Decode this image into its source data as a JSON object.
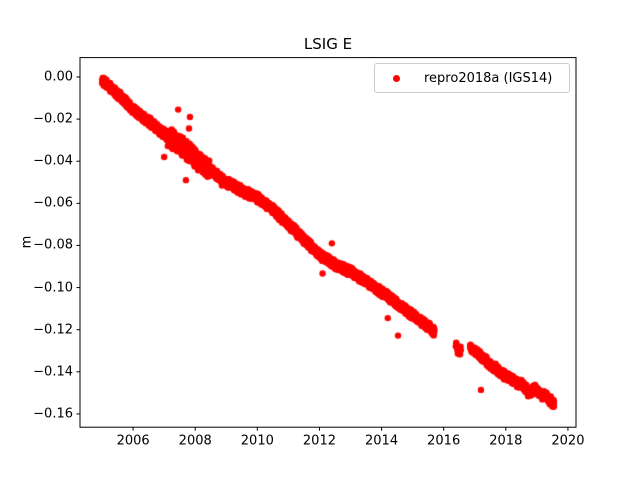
{
  "chart_data": {
    "type": "scatter",
    "title": "LSIG E",
    "xlabel": "",
    "ylabel": "m",
    "xlim": [
      2004.29,
      2020.26
    ],
    "ylim": [
      -0.1663,
      0.0092
    ],
    "grid": false,
    "xticks": [
      2006,
      2008,
      2010,
      2012,
      2014,
      2016,
      2018,
      2020
    ],
    "xtick_labels": [
      "2006",
      "2008",
      "2010",
      "2012",
      "2014",
      "2016",
      "2018",
      "2020"
    ],
    "yticks": [
      0.0,
      -0.02,
      -0.04,
      -0.06,
      -0.08,
      -0.1,
      -0.12,
      -0.14,
      -0.16
    ],
    "ytick_labels": [
      "0.00",
      "−0.02",
      "−0.04",
      "−0.06",
      "−0.08",
      "−0.10",
      "−0.12",
      "−0.14",
      "−0.16"
    ],
    "legend": {
      "position": "upper right",
      "entries": [
        {
          "label": "repro2018a (IGS14)",
          "color": "#ff0000",
          "marker": "dot"
        }
      ]
    },
    "colors": {
      "marker": "#ff0000",
      "axis": "#000000",
      "text": "#000000",
      "legend_border": "#cccccc",
      "background": "#ffffff"
    },
    "series": [
      {
        "name": "repro2018a (IGS14)",
        "color": "#ff0000",
        "marker_radius_px": 3.2,
        "trend_keypoints": [
          [
            2005.0,
            -0.0015
          ],
          [
            2005.5,
            -0.008
          ],
          [
            2006.0,
            -0.0155
          ],
          [
            2006.5,
            -0.021
          ],
          [
            2007.0,
            -0.027
          ],
          [
            2007.5,
            -0.032
          ],
          [
            2008.0,
            -0.0385
          ],
          [
            2008.5,
            -0.0445
          ],
          [
            2009.0,
            -0.05
          ],
          [
            2009.5,
            -0.054
          ],
          [
            2010.0,
            -0.0575
          ],
          [
            2010.5,
            -0.063
          ],
          [
            2011.0,
            -0.07
          ],
          [
            2011.5,
            -0.077
          ],
          [
            2012.0,
            -0.0845
          ],
          [
            2012.5,
            -0.089
          ],
          [
            2013.0,
            -0.0925
          ],
          [
            2013.5,
            -0.097
          ],
          [
            2014.0,
            -0.102
          ],
          [
            2014.5,
            -0.1075
          ],
          [
            2015.0,
            -0.113
          ],
          [
            2015.5,
            -0.1185
          ],
          [
            2015.7,
            -0.121
          ],
          [
            2016.38,
            -0.128
          ],
          [
            2016.56,
            -0.1305
          ],
          [
            2016.85,
            -0.1285
          ],
          [
            2017.0,
            -0.13
          ],
          [
            2017.5,
            -0.1365
          ],
          [
            2018.0,
            -0.142
          ],
          [
            2018.3,
            -0.1445
          ],
          [
            2018.55,
            -0.1465
          ],
          [
            2018.75,
            -0.15
          ],
          [
            2018.95,
            -0.148
          ],
          [
            2019.1,
            -0.1505
          ],
          [
            2019.3,
            -0.1515
          ],
          [
            2019.55,
            -0.1555
          ]
        ],
        "segments": [
          {
            "x_start": 2005.0,
            "x_end": 2015.7,
            "points_per_year": 330
          },
          {
            "x_start": 2016.38,
            "x_end": 2016.56,
            "points_per_year": 70
          },
          {
            "x_start": 2016.85,
            "x_end": 2019.55,
            "points_per_year": 330
          }
        ],
        "base_noise_amplitude": 0.0023,
        "noise_bands": [
          {
            "x_start": 2007.1,
            "x_end": 2008.45,
            "amplitude": 0.005
          },
          {
            "x_start": 2016.38,
            "x_end": 2016.56,
            "amplitude": 0.0036
          }
        ],
        "outliers": [
          [
            2007.0,
            -0.038
          ],
          [
            2007.45,
            -0.0155
          ],
          [
            2007.8,
            -0.0245
          ],
          [
            2007.83,
            -0.019
          ],
          [
            2007.7,
            -0.049
          ],
          [
            2008.86,
            -0.0515
          ],
          [
            2012.1,
            -0.0933
          ],
          [
            2012.4,
            -0.079
          ],
          [
            2014.2,
            -0.1145
          ],
          [
            2014.53,
            -0.1228
          ],
          [
            2017.2,
            -0.1486
          ]
        ],
        "seed": 42
      }
    ]
  }
}
